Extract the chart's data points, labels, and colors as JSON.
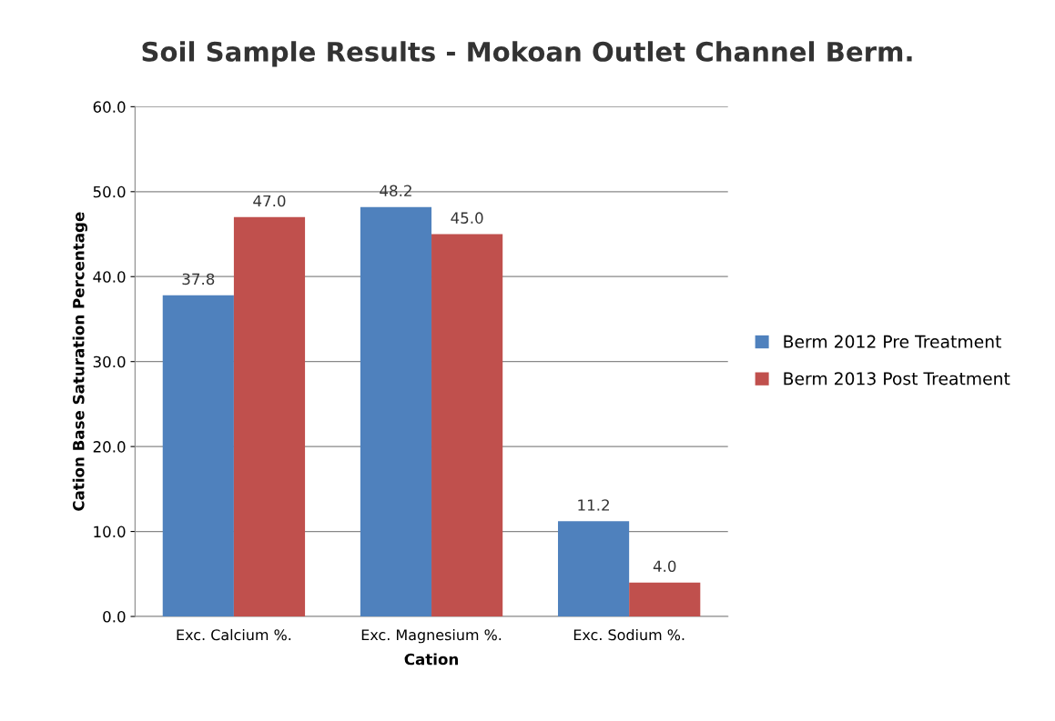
{
  "chart_data": {
    "type": "bar",
    "title": "Soil Sample Results - Mokoan Outlet Channel Berm.",
    "xlabel": "Cation",
    "ylabel": "Cation Base Saturation Percentage",
    "categories": [
      "Exc. Calcium %.",
      "Exc. Magnesium %.",
      "Exc. Sodium %."
    ],
    "series": [
      {
        "name": "Berm 2012 Pre Treatment",
        "color": "#4f81bd",
        "values": [
          37.8,
          48.2,
          11.2
        ],
        "value_labels": [
          "37.8",
          "48.2",
          "11.2"
        ]
      },
      {
        "name": "Berm 2013 Post Treatment",
        "color": "#c0504d",
        "values": [
          47.0,
          45.0,
          4.0
        ],
        "value_labels": [
          "47.0",
          "45.0",
          "4.0"
        ]
      }
    ],
    "ylim": [
      0,
      60
    ],
    "yticks": [
      {
        "value": 0,
        "label": "0.0"
      },
      {
        "value": 10,
        "label": "10.0"
      },
      {
        "value": 20,
        "label": "20.0"
      },
      {
        "value": 30,
        "label": "30.0"
      },
      {
        "value": 40,
        "label": "40.0"
      },
      {
        "value": 50,
        "label": "50.0"
      },
      {
        "value": 60,
        "label": "60.0"
      }
    ],
    "grid": "y",
    "legend": "right"
  }
}
